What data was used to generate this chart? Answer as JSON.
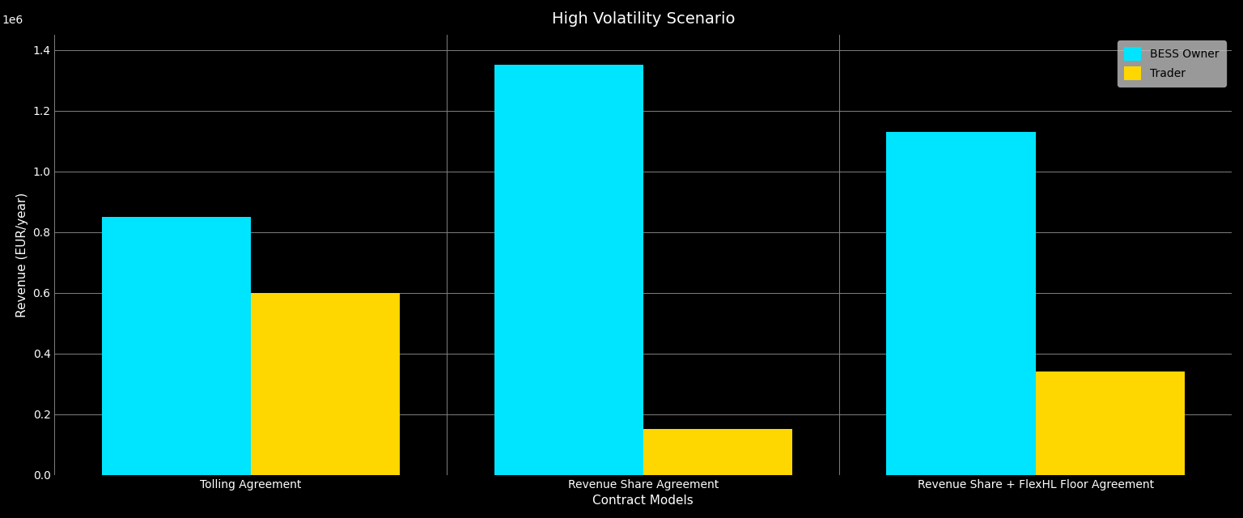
{
  "title": "High Volatility Scenario",
  "xlabel": "Contract Models",
  "ylabel": "Revenue (EUR/year)",
  "background_color": "#000000",
  "text_color": "#ffffff",
  "grid_color": "#808080",
  "categories": [
    "Tolling Agreement",
    "Revenue Share Agreement",
    "Revenue Share + FlexHL Floor Agreement"
  ],
  "bess_owner_values": [
    850000,
    1350000,
    1130000
  ],
  "trader_values": [
    600000,
    150000,
    340000
  ],
  "bess_owner_color": "#00e5ff",
  "trader_color": "#ffd700",
  "bess_owner_label": "BESS Owner",
  "trader_label": "Trader",
  "ylim": [
    0,
    1450000
  ],
  "bar_width": 0.38,
  "legend_facecolor": "#c0c0c0",
  "legend_edgecolor": "#aaaaaa",
  "title_fontsize": 14,
  "label_fontsize": 11,
  "tick_fontsize": 10
}
